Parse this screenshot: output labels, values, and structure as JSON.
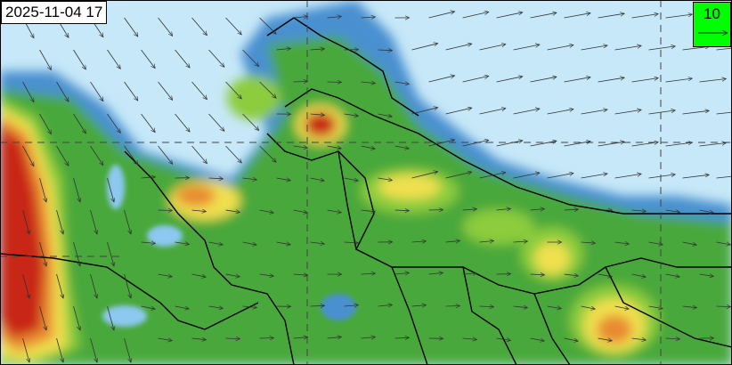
{
  "map": {
    "timestamp": "2025-11-04 17",
    "legend": {
      "reference_wind_value": "10",
      "background_color": "#00ff00"
    },
    "colors": {
      "low": "#c6e8f8",
      "light_blue": "#8cc8f0",
      "blue": "#4a90d0",
      "green": "#4aa83a",
      "light_green": "#8ccc3c",
      "yellow": "#f0e050",
      "orange": "#e88a30",
      "red": "#c82818",
      "dark_red": "#a81810"
    }
  }
}
